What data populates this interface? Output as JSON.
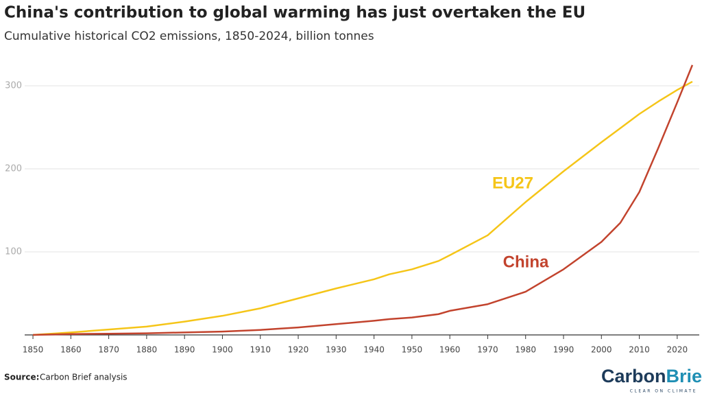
{
  "chart_data": {
    "type": "line",
    "title": "China's contribution to global warming has just overtaken the EU",
    "subtitle": "Cumulative historical CO2 emissions, 1850-2024, billion tonnes",
    "x": [
      1850,
      1860,
      1870,
      1880,
      1890,
      1900,
      1910,
      1915,
      1920,
      1930,
      1940,
      1944,
      1950,
      1957,
      1960,
      1970,
      1980,
      1990,
      2000,
      2005,
      2010,
      2015,
      2020,
      2024
    ],
    "series": [
      {
        "name": "EU27",
        "color": "#f5c518",
        "values": [
          0,
          3,
          6.5,
          10,
          16,
          23,
          32,
          38,
          44,
          56,
          67,
          73,
          79,
          89,
          96,
          120,
          160,
          197,
          232,
          249,
          266,
          281,
          295,
          305
        ]
      },
      {
        "name": "China",
        "color": "#c2432d",
        "values": [
          0,
          1,
          1.5,
          2,
          3,
          4,
          6,
          7.5,
          9,
          13,
          17,
          19,
          21,
          25,
          29,
          37,
          52,
          79,
          112,
          135,
          172,
          225,
          280,
          325
        ]
      }
    ],
    "xlim": [
      1848,
      2026
    ],
    "ylim": [
      0,
      330
    ],
    "xticks": [
      1850,
      1860,
      1870,
      1880,
      1890,
      1900,
      1910,
      1920,
      1930,
      1940,
      1950,
      1960,
      1970,
      1980,
      1990,
      2000,
      2010,
      2020
    ],
    "yticks": [
      100,
      200,
      300
    ],
    "grid": true,
    "source_label": "Source:",
    "source": "Carbon Brief analysis",
    "logo": {
      "part1": "Carbon",
      "part2": "Brief",
      "tagline": "CLEAR ON CLIMATE"
    }
  }
}
